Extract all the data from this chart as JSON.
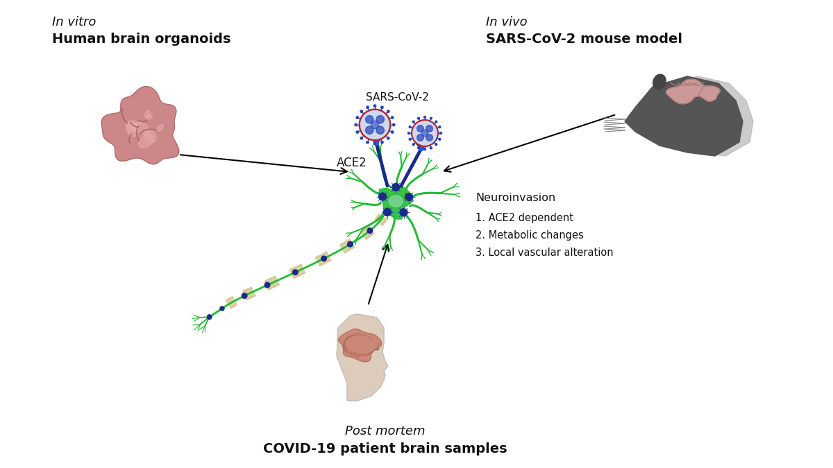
{
  "background_color": "#ffffff",
  "title_invitro_italic": "In vitro",
  "title_invitro_bold": "Human brain organoids",
  "title_invivo_italic": "In vivo",
  "title_invivo_bold": "SARS-CoV-2 mouse model",
  "title_postmortem_italic": "Post mortem",
  "title_postmortem_bold": "COVID-19 patient brain samples",
  "label_sars": "SARS-CoV-2",
  "label_ace2": "ACE2",
  "label_neuroinvasion": "Neuroinvasion",
  "label_point1": "1. ACE2 dependent",
  "label_point2": "2. Metabolic changes",
  "label_point3": "3. Local vascular alteration",
  "neuron_color": "#22bb33",
  "neuron_dark": "#1a8a28",
  "axon_tan": "#d4c89a",
  "axon_green_outline": "#22bb33",
  "virus_blue_body": "#2244bb",
  "virus_blue_dark": "#112288",
  "virus_spike_blue": "#2244bb",
  "node_blue": "#1a2a88",
  "organoid_color": "#cc8888",
  "organoid_highlight": "#e8aaaa",
  "organoid_shadow": "#aa6666",
  "mouse_body_color": "#555555",
  "mouse_fade_color": "#aaaaaa",
  "mouse_brain_color": "#cc9999",
  "mouse_brain_dark": "#aa7777",
  "human_skin": "#ddccbb",
  "human_brain_color": "#cc8877",
  "human_brain_dark": "#aa6655",
  "text_color": "#111111",
  "receptor_color": "#1a3a99",
  "receptor_teal": "#229988"
}
